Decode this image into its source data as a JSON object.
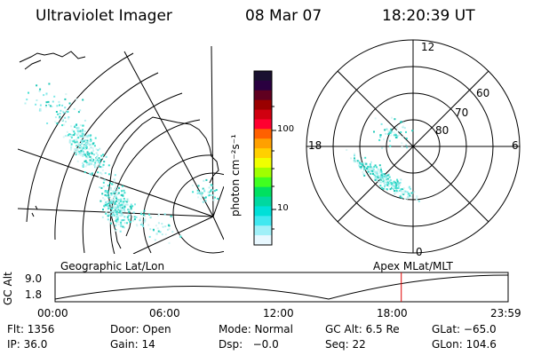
{
  "header": {
    "instrument": "Ultraviolet Imager",
    "date": "08 Mar 07",
    "time": "18:20:39 UT"
  },
  "colorbar": {
    "label": "photon cm⁻²s⁻¹",
    "ticks": [
      {
        "label": "100",
        "value": 100
      },
      {
        "label": "10",
        "value": 10
      }
    ],
    "colors": [
      "#1a1030",
      "#2a0040",
      "#600020",
      "#9a0000",
      "#d00010",
      "#ff0030",
      "#ff6000",
      "#ffa000",
      "#ffd000",
      "#f0ff00",
      "#a0ff00",
      "#40ff20",
      "#00e060",
      "#00d8a0",
      "#00e0d8",
      "#40e8f0",
      "#a0f0f8",
      "#e8f8ff"
    ]
  },
  "left_panel": {
    "label": "Geographic Lat/Lon"
  },
  "right_panel": {
    "label": "Apex MLat/MLT",
    "mlt_labels": {
      "top": "12",
      "bottom": "0",
      "left": "18",
      "right": "6"
    },
    "mlat_labels": [
      "60",
      "70",
      "80"
    ]
  },
  "altitude_strip": {
    "ylabel": "GC Alt",
    "y_ticks": [
      "9.0",
      "1.8"
    ],
    "x_ticks": [
      "00:00",
      "06:00",
      "12:00",
      "18:00",
      "23:59"
    ],
    "current_marker_hour": 18.34
  },
  "status": {
    "row1": [
      {
        "key": "flt",
        "text": "Flt: 1356"
      },
      {
        "key": "door",
        "text": "Door: Open"
      },
      {
        "key": "mode",
        "text": "Mode: Normal"
      },
      {
        "key": "gcalt",
        "text": "GC Alt: 6.5 Re"
      },
      {
        "key": "glat",
        "text": "GLat: −65.0"
      }
    ],
    "row2": [
      {
        "key": "ip",
        "text": "IP: 36.0"
      },
      {
        "key": "gain",
        "text": "Gain: 14"
      },
      {
        "key": "dsp",
        "text": "Dsp:   −0.0"
      },
      {
        "key": "seq",
        "text": "Seq: 22"
      },
      {
        "key": "glon",
        "text": "GLon: 104.6"
      }
    ]
  }
}
